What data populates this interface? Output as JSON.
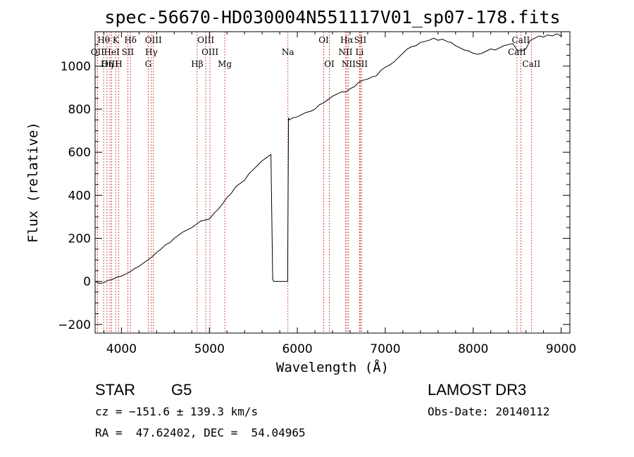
{
  "chart_data": {
    "type": "line",
    "title": "spec-56670-HD030004N551117V01_sp07-178.fits",
    "xlabel": "Wavelength (Å)",
    "ylabel": "Flux (relative)",
    "xlim": [
      3700,
      9100
    ],
    "ylim": [
      -240,
      1160
    ],
    "xticks": [
      4000,
      5000,
      6000,
      7000,
      8000,
      9000
    ],
    "yticks": [
      -200,
      0,
      200,
      400,
      600,
      800,
      1000
    ],
    "xtick_labels": [
      "4000",
      "5000",
      "6000",
      "7000",
      "8000",
      "9000"
    ],
    "ytick_labels": [
      "−200",
      "0",
      "200",
      "400",
      "600",
      "800",
      "1000"
    ],
    "series": [
      {
        "name": "flux",
        "x": [
          3700,
          3750,
          3800,
          3850,
          3900,
          3950,
          4000,
          4050,
          4100,
          4150,
          4200,
          4250,
          4300,
          4350,
          4400,
          4450,
          4500,
          4550,
          4600,
          4650,
          4700,
          4750,
          4800,
          4850,
          4900,
          4950,
          5000,
          5050,
          5100,
          5150,
          5200,
          5250,
          5300,
          5350,
          5400,
          5450,
          5500,
          5550,
          5600,
          5650,
          5700,
          5720,
          5730,
          5750,
          5800,
          5850,
          5890,
          5900,
          5910,
          5950,
          6000,
          6050,
          6100,
          6150,
          6200,
          6250,
          6300,
          6350,
          6400,
          6450,
          6500,
          6550,
          6600,
          6650,
          6700,
          6750,
          6800,
          6850,
          6900,
          6950,
          7000,
          7050,
          7100,
          7150,
          7200,
          7250,
          7300,
          7350,
          7400,
          7450,
          7500,
          7550,
          7600,
          7650,
          7700,
          7750,
          7800,
          7850,
          7900,
          7950,
          8000,
          8050,
          8100,
          8150,
          8200,
          8250,
          8300,
          8350,
          8400,
          8450,
          8500,
          8550,
          8600,
          8650,
          8700,
          8750,
          8800,
          8850,
          8900,
          8950,
          9000,
          9010
        ],
        "y": [
          0,
          -10,
          -5,
          5,
          10,
          20,
          25,
          35,
          45,
          60,
          70,
          85,
          100,
          115,
          135,
          150,
          170,
          180,
          200,
          215,
          230,
          240,
          250,
          265,
          280,
          285,
          290,
          315,
          335,
          360,
          390,
          410,
          440,
          455,
          470,
          500,
          520,
          540,
          560,
          575,
          590,
          10,
          0,
          0,
          0,
          0,
          0,
          760,
          750,
          760,
          765,
          775,
          785,
          790,
          800,
          820,
          830,
          845,
          860,
          870,
          880,
          880,
          895,
          905,
          925,
          935,
          940,
          950,
          955,
          980,
          995,
          1005,
          1020,
          1040,
          1060,
          1080,
          1090,
          1095,
          1110,
          1115,
          1120,
          1130,
          1120,
          1125,
          1115,
          1110,
          1095,
          1085,
          1075,
          1070,
          1060,
          1055,
          1060,
          1070,
          1080,
          1075,
          1085,
          1095,
          1100,
          1105,
          1075,
          1070,
          1080,
          1120,
          1130,
          1140,
          1135,
          1145,
          1140,
          1150,
          1140,
          1140
        ]
      }
    ],
    "spectral_lines": [
      {
        "name": "Hθ",
        "wavelength": 3797,
        "row": 0
      },
      {
        "name": "K",
        "wavelength": 3934,
        "row": 0
      },
      {
        "name": "Hδ",
        "wavelength": 4102,
        "row": 0
      },
      {
        "name": "OIII",
        "wavelength": 4363,
        "row": 0
      },
      {
        "name": "OIII",
        "wavelength": 4959,
        "row": 0
      },
      {
        "name": "OI",
        "wavelength": 6300,
        "row": 0
      },
      {
        "name": "Hα",
        "wavelength": 6563,
        "row": 0
      },
      {
        "name": "SII",
        "wavelength": 6716,
        "row": 0
      },
      {
        "name": "CaII",
        "wavelength": 8542,
        "row": 0
      },
      {
        "name": "OII",
        "wavelength": 3727,
        "row": 1
      },
      {
        "name": "HeI",
        "wavelength": 3889,
        "row": 1
      },
      {
        "name": "SII",
        "wavelength": 4072,
        "row": 1
      },
      {
        "name": "Hγ",
        "wavelength": 4340,
        "row": 1
      },
      {
        "name": "OIII",
        "wavelength": 5007,
        "row": 1
      },
      {
        "name": "Na",
        "wavelength": 5893,
        "row": 1
      },
      {
        "name": "NII",
        "wavelength": 6548,
        "row": 1
      },
      {
        "name": "Li",
        "wavelength": 6708,
        "row": 1
      },
      {
        "name": "CaII",
        "wavelength": 8498,
        "row": 1
      },
      {
        "name": "OIII",
        "wavelength": 3869,
        "row": 2
      },
      {
        "name": "Hη",
        "wavelength": 3835,
        "row": 2
      },
      {
        "name": "H",
        "wavelength": 3968,
        "row": 2
      },
      {
        "name": "G",
        "wavelength": 4304,
        "row": 2
      },
      {
        "name": "Hβ",
        "wavelength": 4861,
        "row": 2
      },
      {
        "name": "Mg",
        "wavelength": 5175,
        "row": 2
      },
      {
        "name": "OI",
        "wavelength": 6364,
        "row": 2
      },
      {
        "name": "NII",
        "wavelength": 6583,
        "row": 2
      },
      {
        "name": "SII",
        "wavelength": 6731,
        "row": 2
      },
      {
        "name": "CaII",
        "wavelength": 8662,
        "row": 2
      }
    ]
  },
  "info": {
    "object_class": "STAR",
    "subclass": "G5",
    "survey": "LAMOST DR3",
    "redshift": "cz = −151.6 ± 139.3 km/s",
    "obs_date": "Obs-Date: 20140112",
    "coords": "RA =  47.62402, DEC =  54.04965"
  },
  "colors": {
    "line_marker": "#cc2222",
    "spectrum": "#000000"
  }
}
